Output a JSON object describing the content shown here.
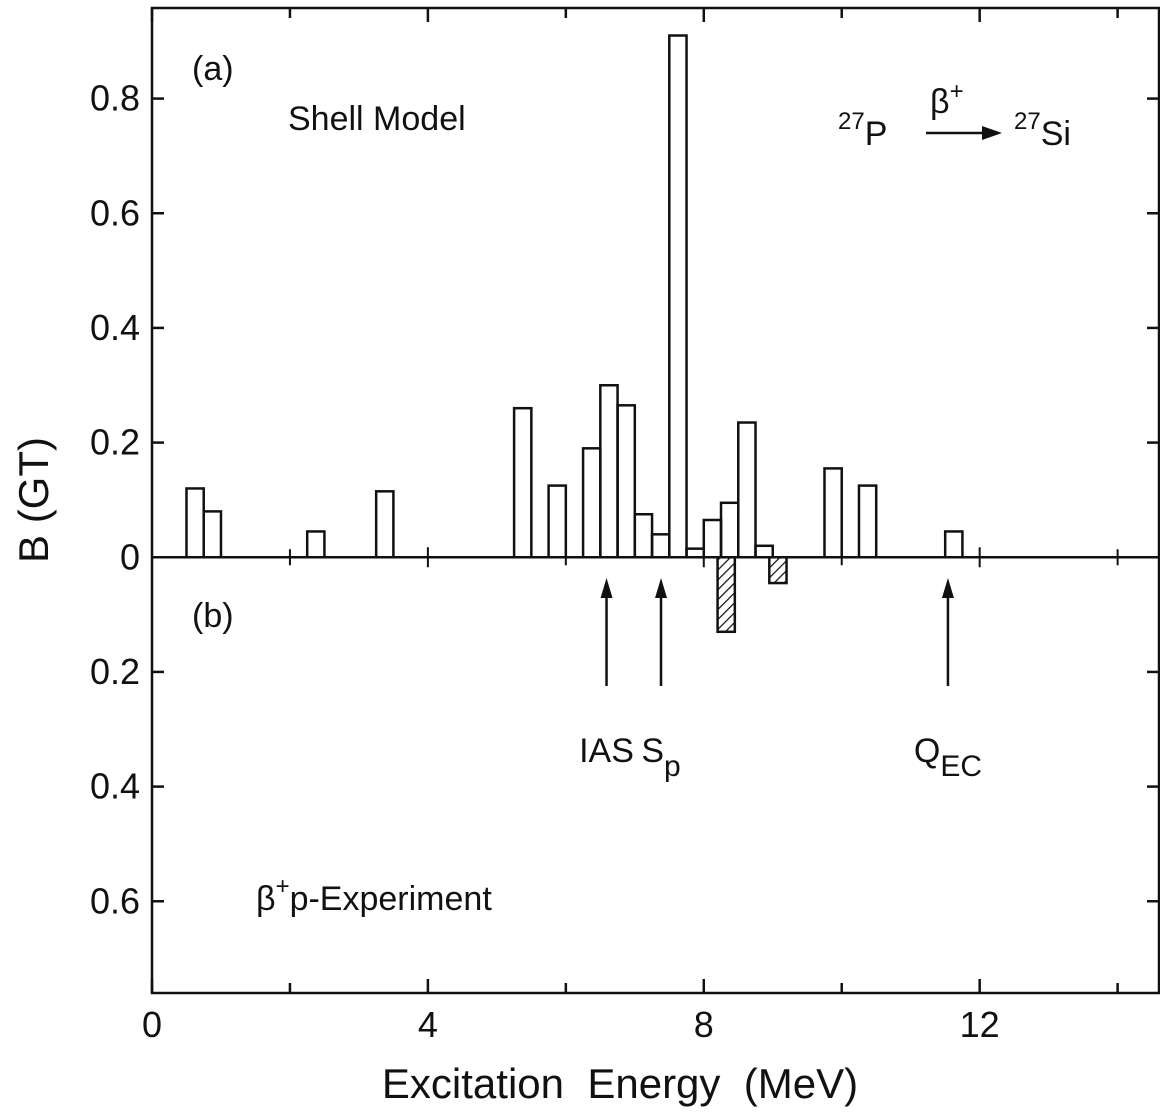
{
  "chart_data": {
    "type": "histogram",
    "xlabel": "Excitation  Energy  (MeV)",
    "ylabel": "B (GT)",
    "xlim": [
      0,
      14.6
    ],
    "ylim": [
      -0.76,
      0.958
    ],
    "xticks": [
      0,
      4,
      8,
      12
    ],
    "xminorticks": [
      2,
      6,
      10,
      14
    ],
    "yticks": [
      {
        "value": -0.6,
        "label": "0.6"
      },
      {
        "value": -0.4,
        "label": "0.4"
      },
      {
        "value": -0.2,
        "label": "0.2"
      },
      0,
      0.2,
      0.4,
      0.6,
      0.8
    ],
    "series": [
      {
        "name": "Shell Model",
        "panel": "(a)",
        "color": "#111111",
        "hatched": false,
        "bins": [
          0.5,
          0.75,
          1.0,
          1.25,
          1.5,
          1.75,
          2.0,
          2.25,
          2.5,
          2.75,
          3.0,
          3.25,
          3.5,
          3.75,
          4.0,
          4.25,
          4.5,
          4.75,
          5.0,
          5.25,
          5.5,
          5.75,
          6.0,
          6.25,
          6.5,
          6.75,
          7.0,
          7.25,
          7.5,
          7.75,
          8.0,
          8.25,
          8.5,
          8.75,
          9.0,
          9.25,
          9.5,
          9.75,
          10.0,
          10.25,
          10.5,
          10.75,
          11.0,
          11.25,
          11.5,
          11.75
        ],
        "values": [
          0.12,
          0.08,
          0,
          0,
          0,
          0,
          0,
          0.045,
          0,
          0,
          0,
          0.115,
          0,
          0,
          0,
          0,
          0,
          0,
          0,
          0.26,
          0,
          0.125,
          0,
          0.19,
          0.3,
          0.265,
          0.075,
          0.04,
          0.91,
          0.015,
          0.065,
          0.095,
          0.235,
          0.02,
          0,
          0,
          0,
          0.155,
          0,
          0.125,
          0,
          0,
          0,
          0,
          0.045
        ]
      },
      {
        "name": "p-Experiment",
        "name_prefix": "β",
        "name_sup": "+",
        "panel": "(b)",
        "color": "#111111",
        "hatched": true,
        "bins": [
          8.2,
          8.45,
          8.95,
          9.2
        ],
        "values": [
          -0.13,
          0,
          -0.045
        ]
      }
    ],
    "reaction": {
      "parent": "P",
      "parent_mass": "27",
      "decay": "β",
      "decay_sup": "+",
      "daughter": "Si",
      "daughter_mass": "27"
    },
    "arrows": [
      {
        "x": 6.59,
        "label": "IAS"
      },
      {
        "x": 7.38,
        "label": "S",
        "sub": "p"
      },
      {
        "x": 11.54,
        "label": "Q",
        "sub": "EC"
      }
    ]
  }
}
